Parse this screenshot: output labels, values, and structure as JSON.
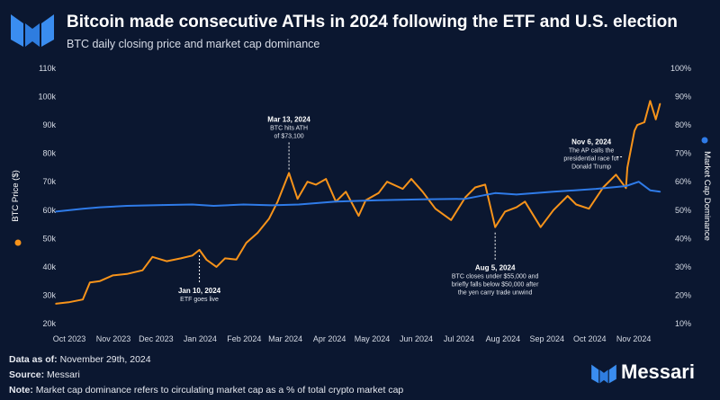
{
  "header": {
    "title": "Bitcoin made consecutive ATHs in 2024 following the ETF and U.S. election",
    "subtitle": "BTC daily closing price and market cap dominance"
  },
  "footer": {
    "data_as_of_label": "Data as of:",
    "data_as_of_value": "November 29th, 2024",
    "source_label": "Source:",
    "source_value": "Messari",
    "note_label": "Note:",
    "note_value": "Market cap dominance refers to circulating market cap as a % of total crypto market cap"
  },
  "brand": {
    "name": "Messari"
  },
  "colors": {
    "background": "#0b1730",
    "price": "#f7931a",
    "dominance": "#2f7be8"
  },
  "chart_data": {
    "type": "line",
    "title": "Bitcoin made consecutive ATHs in 2024 following the ETF and U.S. election",
    "subtitle": "BTC daily closing price and market cap dominance",
    "ylabel_left": "BTC Price ($)",
    "ylabel_right": "Market Cap Dominance",
    "ylim_left": [
      20000,
      110000
    ],
    "ylim_right": [
      10,
      100
    ],
    "yticks_left": [
      "20k",
      "30k",
      "40k",
      "50k",
      "60k",
      "70k",
      "80k",
      "90k",
      "100k",
      "110k"
    ],
    "yticks_right": [
      "10%",
      "20%",
      "30%",
      "40%",
      "50%",
      "60%",
      "70%",
      "80%",
      "90%",
      "100%"
    ],
    "x_ticks": [
      "Oct 2023",
      "Nov 2023",
      "Dec 2023",
      "Jan 2024",
      "Feb 2024",
      "Mar 2024",
      "Apr 2024",
      "May 2024",
      "Jun 2024",
      "Jul 2024",
      "Aug 2024",
      "Sep 2024",
      "Oct 2024",
      "Nov 2024"
    ],
    "grid": false,
    "series": [
      {
        "name": "BTC Price ($)",
        "axis": "left",
        "color": "#f7931a",
        "x": [
          "2023-10-01",
          "2023-10-10",
          "2023-10-20",
          "2023-10-25",
          "2023-11-01",
          "2023-11-10",
          "2023-11-20",
          "2023-12-01",
          "2023-12-08",
          "2023-12-18",
          "2023-12-28",
          "2024-01-05",
          "2024-01-10",
          "2024-01-15",
          "2024-01-22",
          "2024-01-28",
          "2024-02-05",
          "2024-02-12",
          "2024-02-20",
          "2024-02-28",
          "2024-03-05",
          "2024-03-13",
          "2024-03-19",
          "2024-03-26",
          "2024-04-01",
          "2024-04-08",
          "2024-04-15",
          "2024-04-22",
          "2024-05-01",
          "2024-05-06",
          "2024-05-15",
          "2024-05-21",
          "2024-06-01",
          "2024-06-07",
          "2024-06-15",
          "2024-06-24",
          "2024-07-05",
          "2024-07-15",
          "2024-07-22",
          "2024-07-29",
          "2024-08-05",
          "2024-08-12",
          "2024-08-20",
          "2024-08-26",
          "2024-09-06",
          "2024-09-15",
          "2024-09-25",
          "2024-10-01",
          "2024-10-10",
          "2024-10-20",
          "2024-10-29",
          "2024-11-05",
          "2024-11-06",
          "2024-11-11",
          "2024-11-13",
          "2024-11-18",
          "2024-11-22",
          "2024-11-26",
          "2024-11-29"
        ],
        "values": [
          27000,
          27500,
          28500,
          34500,
          35000,
          37000,
          37500,
          38800,
          43500,
          42000,
          43000,
          44000,
          46000,
          42500,
          40000,
          43000,
          42600,
          48500,
          52000,
          57000,
          63000,
          73100,
          64000,
          70000,
          69000,
          71000,
          63000,
          66500,
          58000,
          63500,
          66000,
          70000,
          67500,
          71000,
          66500,
          60500,
          56500,
          64500,
          68000,
          69000,
          54000,
          59500,
          61000,
          63000,
          54000,
          60000,
          65000,
          62000,
          60500,
          68000,
          72500,
          67800,
          75000,
          88000,
          90000,
          91000,
          98500,
          92000,
          97500
        ]
      },
      {
        "name": "Market Cap Dominance",
        "axis": "right",
        "color": "#2f7be8",
        "x": [
          "2023-10-01",
          "2023-10-20",
          "2023-11-01",
          "2023-11-20",
          "2023-12-15",
          "2024-01-05",
          "2024-01-20",
          "2024-02-10",
          "2024-03-01",
          "2024-03-20",
          "2024-04-15",
          "2024-05-15",
          "2024-06-15",
          "2024-07-15",
          "2024-08-05",
          "2024-08-20",
          "2024-09-15",
          "2024-10-15",
          "2024-11-05",
          "2024-11-14",
          "2024-11-22",
          "2024-11-29"
        ],
        "values": [
          49.5,
          50.5,
          51,
          51.5,
          51.8,
          52,
          51.5,
          52,
          51.7,
          52,
          53,
          53.5,
          53.8,
          54,
          56,
          55.5,
          56.5,
          57.5,
          58.5,
          60,
          57,
          56.5
        ]
      }
    ],
    "annotations": [
      {
        "date": "2024-01-10",
        "value": 46000,
        "title": "Jan 10, 2024",
        "text": [
          "ETF goes live"
        ],
        "position": "below"
      },
      {
        "date": "2024-03-13",
        "value": 73100,
        "title": "Mar 13, 2024",
        "text": [
          "BTC hits ATH",
          "of $73,100"
        ],
        "position": "above"
      },
      {
        "date": "2024-08-05",
        "value": 54000,
        "title": "Aug 5, 2024",
        "text": [
          "BTC closes under $55,000 and",
          "briefly falls below $50,000 after",
          "the yen carry trade unwind"
        ],
        "position": "below"
      },
      {
        "date": "2024-11-06",
        "value": 75000,
        "title": "Nov 6, 2024",
        "text": [
          "The AP calls the",
          "presidential race for",
          "Donald Trump"
        ],
        "position": "left"
      }
    ]
  }
}
